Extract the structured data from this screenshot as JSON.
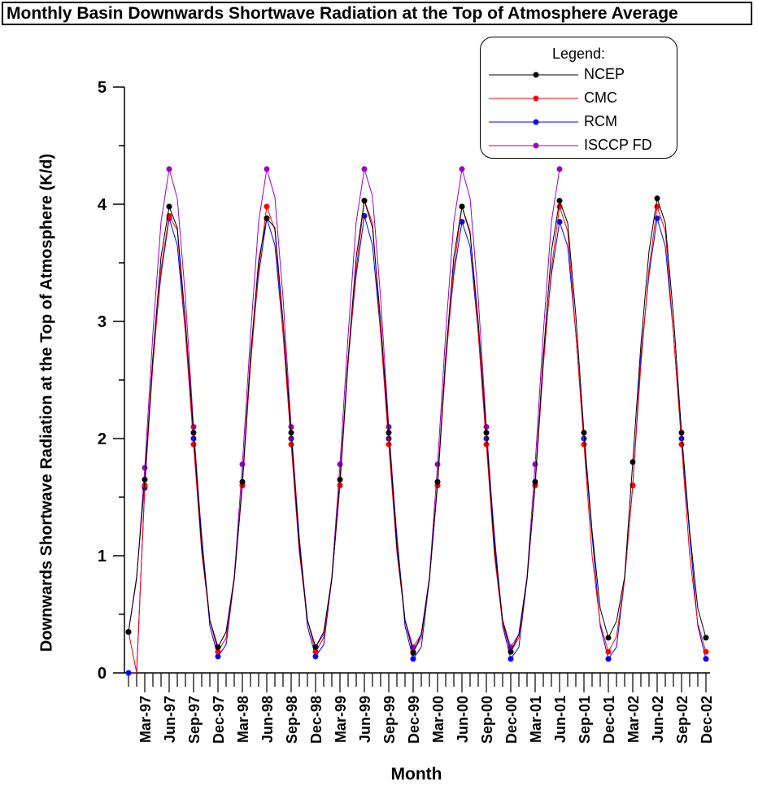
{
  "chart_data": {
    "type": "line",
    "title": "Monthly Basin Downwards Shortwave Radiation at the Top of Atmosphere Average",
    "xlabel": "Month",
    "ylabel": "Downwards Shortwave Radiation at the Top of Atmosphere (K/d)",
    "ylim": [
      0,
      5
    ],
    "yticks": [
      0,
      1,
      2,
      3,
      4,
      5
    ],
    "legend_title": "Legend:",
    "legend_position": "top-right",
    "grid": false,
    "x_start_month": "Jan-97",
    "x_tick_labels": [
      "Mar-97",
      "Jun-97",
      "Sep-97",
      "Dec-97",
      "Mar-98",
      "Jun-98",
      "Sep-98",
      "Dec-98",
      "Mar-99",
      "Jun-99",
      "Sep-99",
      "Dec-99",
      "Mar-00",
      "Jun-00",
      "Sep-00",
      "Dec-00",
      "Mar-01",
      "Jun-01",
      "Sep-01",
      "Dec-01",
      "Mar-02",
      "Jun-02",
      "Sep-02",
      "Dec-02"
    ],
    "series": [
      {
        "name": "NCEP",
        "color": "#000000",
        "values": [
          0.35,
          0.82,
          1.65,
          2.7,
          3.55,
          3.98,
          3.8,
          3.0,
          2.05,
          1.08,
          0.45,
          0.22,
          0.35,
          0.8,
          1.63,
          2.7,
          3.52,
          3.88,
          3.8,
          3.0,
          2.05,
          1.08,
          0.45,
          0.22,
          0.35,
          0.8,
          1.65,
          2.68,
          3.55,
          4.03,
          3.8,
          3.0,
          2.05,
          1.08,
          0.45,
          0.17,
          0.33,
          0.8,
          1.63,
          2.7,
          3.55,
          3.98,
          3.75,
          3.0,
          2.05,
          1.06,
          0.45,
          0.18,
          0.33,
          0.8,
          1.63,
          2.7,
          3.6,
          4.03,
          3.84,
          3.05,
          2.05,
          1.21,
          0.55,
          0.3,
          0.44,
          0.82,
          1.8,
          2.8,
          3.6,
          4.05,
          3.84,
          3.05,
          2.05,
          1.21,
          0.55,
          0.3
        ],
        "marker_months": [
          2,
          5,
          8,
          11
        ]
      },
      {
        "name": "CMC",
        "color": "#ff0000",
        "values": [
          0.35,
          0.0,
          1.6,
          2.63,
          3.45,
          3.9,
          3.78,
          2.9,
          1.95,
          1.03,
          0.45,
          0.18,
          0.3,
          0.8,
          1.6,
          2.62,
          3.45,
          3.98,
          3.78,
          2.9,
          1.95,
          1.03,
          0.45,
          0.18,
          0.3,
          0.8,
          1.6,
          2.64,
          3.45,
          4.03,
          3.84,
          2.9,
          1.95,
          1.03,
          0.45,
          0.18,
          0.3,
          0.8,
          1.6,
          2.64,
          3.45,
          3.98,
          3.77,
          2.9,
          1.95,
          1.0,
          0.42,
          0.18,
          0.3,
          0.8,
          1.6,
          2.62,
          3.45,
          3.98,
          3.77,
          2.9,
          1.95,
          1.0,
          0.42,
          0.18,
          0.31,
          0.8,
          1.6,
          2.63,
          3.45,
          3.98,
          3.77,
          2.9,
          1.95,
          1.0,
          0.42,
          0.18
        ],
        "marker_months": [
          2,
          5,
          8,
          11
        ]
      },
      {
        "name": "RCM",
        "color": "#0000ff",
        "values": [
          0.0,
          0.0,
          1.58,
          2.69,
          3.4,
          3.88,
          3.65,
          2.9,
          2.0,
          1.17,
          0.4,
          0.14,
          0.24,
          0.8,
          1.6,
          2.69,
          3.4,
          3.88,
          3.65,
          2.9,
          2.0,
          1.15,
          0.4,
          0.14,
          0.24,
          0.8,
          1.6,
          2.68,
          3.4,
          3.9,
          3.65,
          2.9,
          2.0,
          1.17,
          0.4,
          0.12,
          0.22,
          0.8,
          1.6,
          2.7,
          3.4,
          3.85,
          3.64,
          2.9,
          2.0,
          1.17,
          0.4,
          0.12,
          0.22,
          0.8,
          1.6,
          2.7,
          3.4,
          3.85,
          3.64,
          2.9,
          2.0,
          1.17,
          0.4,
          0.12,
          0.22,
          0.8,
          1.6,
          2.7,
          3.4,
          3.88,
          3.64,
          2.9,
          2.0,
          1.17,
          0.4,
          0.12
        ],
        "marker_months": [
          2,
          5,
          8,
          11
        ]
      },
      {
        "name": "ISCCP FD",
        "color": "#9900cc",
        "values": [
          0.35,
          0.8,
          1.75,
          2.9,
          3.85,
          4.3,
          4.05,
          3.2,
          2.1,
          1.15,
          0.45,
          0.22,
          0.35,
          0.82,
          1.78,
          2.88,
          3.85,
          4.3,
          4.06,
          3.2,
          2.1,
          1.15,
          0.45,
          0.22,
          0.33,
          0.82,
          1.78,
          2.88,
          3.85,
          4.3,
          4.07,
          3.2,
          2.1,
          1.15,
          0.45,
          0.22,
          0.33,
          0.82,
          1.78,
          2.9,
          3.85,
          4.3,
          4.05,
          3.2,
          2.1,
          1.13,
          0.45,
          0.22,
          0.33,
          0.82,
          1.78,
          2.9,
          3.85,
          4.3
        ],
        "marker_months": [
          2,
          5,
          8,
          11
        ]
      }
    ]
  }
}
